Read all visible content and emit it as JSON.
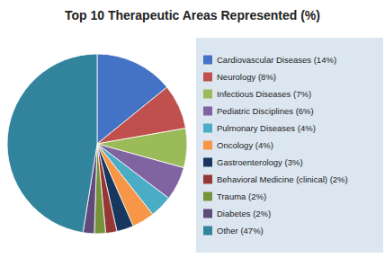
{
  "chart_data": {
    "type": "pie",
    "title": "Top 10 Therapeutic Areas Represented (%)",
    "categories": [
      "Cardiovascular Diseases (14%)",
      "Neurology (8%)",
      "Infectious Diseases (7%)",
      "Pediatric Disciplines (6%)",
      "Pulmonary Diseases (4%)",
      "Oncology (4%)",
      "Gastroenterology (3%)",
      "Behavioral Medicine (clinical) (2%)",
      "Trauma (2%)",
      "Diabetes (2%)",
      "Other (47%)"
    ],
    "values": [
      14,
      8,
      7,
      6,
      4,
      4,
      3,
      2,
      2,
      2,
      47
    ],
    "colors": [
      "#4472C4",
      "#C0504D",
      "#9BBB59",
      "#8064A2",
      "#4BACC6",
      "#F79646",
      "#17375E",
      "#953735",
      "#76933C",
      "#604A7B",
      "#31849B"
    ],
    "legend": "right"
  }
}
